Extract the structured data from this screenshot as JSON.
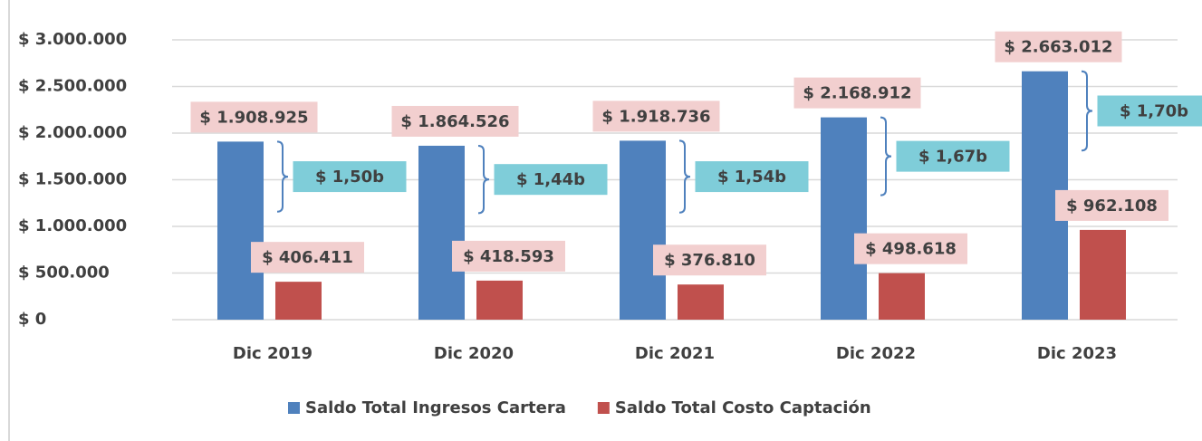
{
  "chart_data": {
    "type": "bar",
    "categories": [
      "Dic 2019",
      "Dic 2020",
      "Dic 2021",
      "Dic 2022",
      "Dic 2023"
    ],
    "series": [
      {
        "name": "Saldo Total Ingresos Cartera",
        "color": "#4f81bd",
        "values": [
          1908925,
          1864526,
          1918736,
          2168912,
          2663012
        ],
        "value_labels": [
          "$ 1.908.925",
          "$ 1.864.526",
          "$ 1.918.736",
          "$ 2.168.912",
          "$ 2.663.012"
        ]
      },
      {
        "name": "Saldo Total Costo Captación",
        "color": "#c0504d",
        "values": [
          406411,
          418593,
          376810,
          498618,
          962108
        ],
        "value_labels": [
          "$ 406.411",
          "$ 418.593",
          "$ 376.810",
          "$ 498.618",
          "$ 962.108"
        ]
      }
    ],
    "annotations": [
      "$ 1,50b",
      "$ 1,44b",
      "$ 1,54b",
      "$ 1,67b",
      "$ 1,70b"
    ],
    "ylim": [
      0,
      3000000
    ],
    "yticks": [
      {
        "value": 0,
        "label": "$ 0"
      },
      {
        "value": 500000,
        "label": "$ 500.000"
      },
      {
        "value": 1000000,
        "label": "$ 1.000.000"
      },
      {
        "value": 1500000,
        "label": "$ 1.500.000"
      },
      {
        "value": 2000000,
        "label": "$ 2.000.000"
      },
      {
        "value": 2500000,
        "label": "$ 2.500.000"
      },
      {
        "value": 3000000,
        "label": "$ 3.000.000"
      }
    ],
    "grid": true,
    "legend": "bottom"
  }
}
